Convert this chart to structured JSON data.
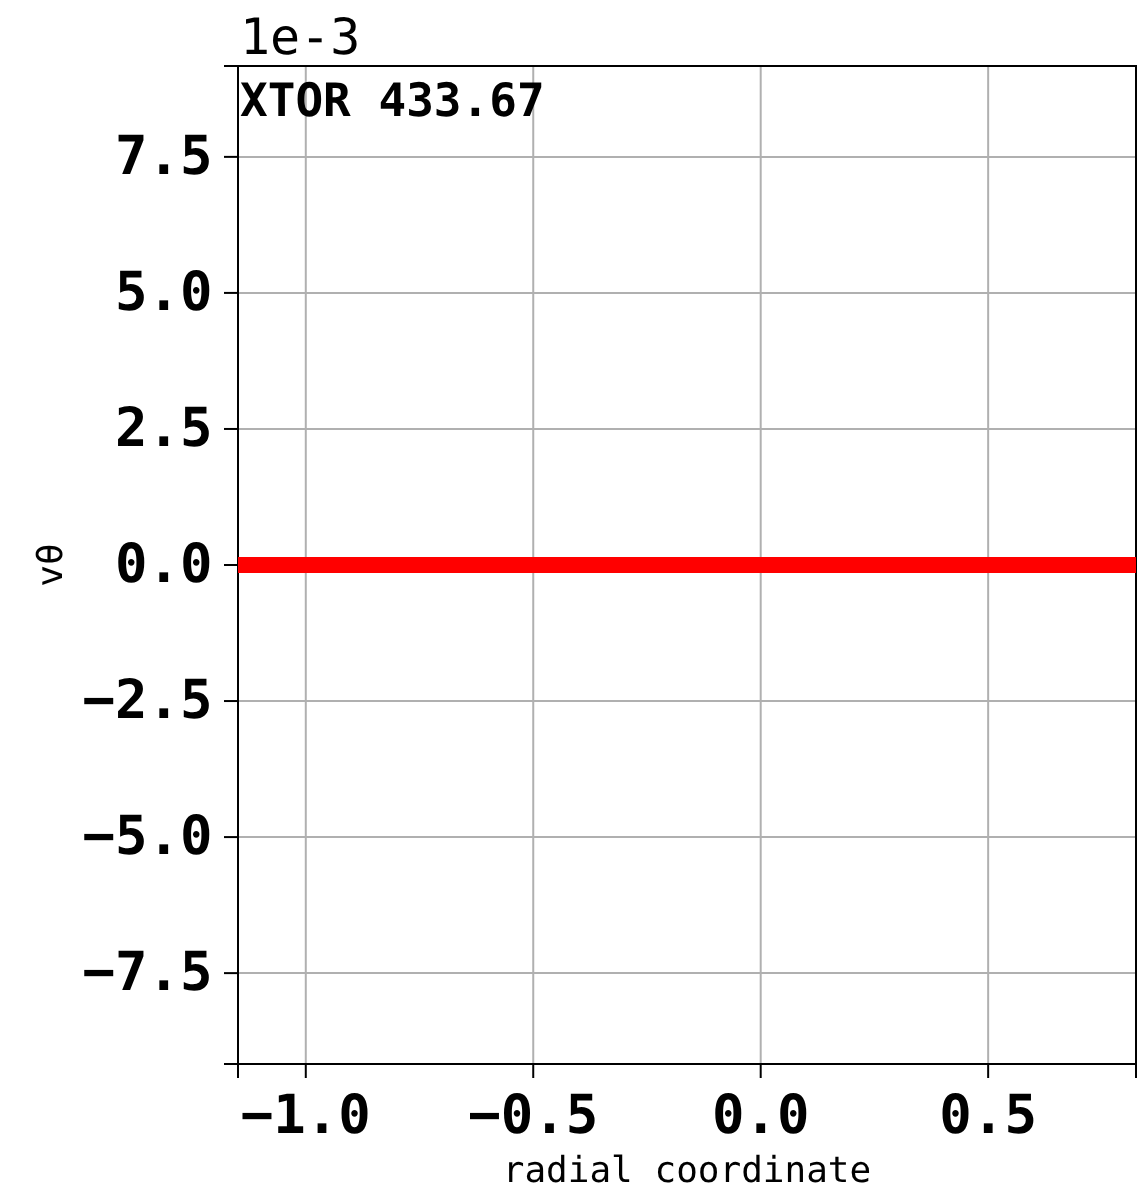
{
  "chart_data": {
    "type": "line",
    "title": "XTOR 433.67",
    "xlabel": "radial coordinate",
    "ylabel": "vθ",
    "annotations": [
      "1e-3"
    ],
    "series": [
      {
        "color": "#ff0000",
        "x": [
          -1.149,
          0.825
        ],
        "values": [
          0,
          0
        ]
      }
    ],
    "xlim": [
      -1.149,
      0.825
    ],
    "xticks": [
      {
        "value": -1,
        "label": "−1.0"
      },
      {
        "value": -0.5,
        "label": "−0.5"
      },
      {
        "value": 0,
        "label": "0.0"
      },
      {
        "value": 0.5,
        "label": "0.5"
      }
    ],
    "ylim": [
      -9.17,
      9.17
    ],
    "yticks": [
      {
        "value": -7.5,
        "label": "−7.5"
      },
      {
        "value": -5,
        "label": "−5.0"
      },
      {
        "value": -2.5,
        "label": "−2.5"
      },
      {
        "value": 0,
        "label": "0.0"
      },
      {
        "value": 2.5,
        "label": "2.5"
      },
      {
        "value": 5,
        "label": "5.0"
      },
      {
        "value": 7.5,
        "label": "7.5"
      }
    ],
    "grid": true,
    "line_style": "solid",
    "marker": "none"
  }
}
